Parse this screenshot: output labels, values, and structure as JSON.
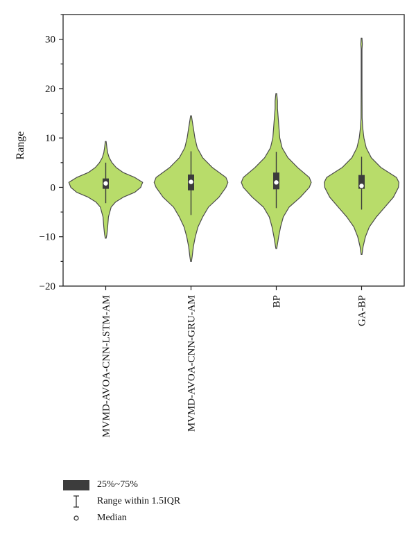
{
  "chart_data": {
    "type": "violin",
    "ylabel": "Range",
    "xlabel": "",
    "ylim": [
      -20,
      35
    ],
    "yticks": [
      -20,
      -10,
      0,
      10,
      20,
      30
    ],
    "grid": false,
    "violin_color": "#b8dc6a",
    "box_color": "#3c3c3c",
    "categories": [
      "MVMD-AVOA-CNN-LSTM-AM",
      "MVMD-AVOA-CNN-GRU-AM",
      "BP",
      "GA-BP"
    ],
    "series": [
      {
        "category": "MVMD-AVOA-CNN-LSTM-AM",
        "median": 0.8,
        "q1": -0.3,
        "q3": 1.8,
        "whisker_low": -3.2,
        "whisker_high": 5.0,
        "min": -10.3,
        "max": 9.3,
        "density": [
          [
            -10.3,
            0.01
          ],
          [
            -9.5,
            0.03
          ],
          [
            -8,
            0.05
          ],
          [
            -6,
            0.07
          ],
          [
            -4,
            0.14
          ],
          [
            -3,
            0.25
          ],
          [
            -2,
            0.45
          ],
          [
            -1,
            0.75
          ],
          [
            0,
            0.9
          ],
          [
            1,
            0.95
          ],
          [
            2,
            0.75
          ],
          [
            3,
            0.45
          ],
          [
            4,
            0.27
          ],
          [
            5,
            0.16
          ],
          [
            6,
            0.09
          ],
          [
            7,
            0.05
          ],
          [
            8,
            0.03
          ],
          [
            9.3,
            0.01
          ]
        ]
      },
      {
        "category": "MVMD-AVOA-CNN-GRU-AM",
        "median": 1.1,
        "q1": -0.6,
        "q3": 2.6,
        "whisker_low": -5.6,
        "whisker_high": 7.3,
        "min": -15.0,
        "max": 14.5,
        "density": [
          [
            -15,
            0.01
          ],
          [
            -14,
            0.03
          ],
          [
            -12,
            0.06
          ],
          [
            -10,
            0.11
          ],
          [
            -8,
            0.18
          ],
          [
            -6,
            0.3
          ],
          [
            -4,
            0.45
          ],
          [
            -2,
            0.72
          ],
          [
            0,
            0.9
          ],
          [
            1,
            0.95
          ],
          [
            2,
            0.9
          ],
          [
            4,
            0.55
          ],
          [
            6,
            0.3
          ],
          [
            8,
            0.16
          ],
          [
            10,
            0.1
          ],
          [
            12,
            0.06
          ],
          [
            13.5,
            0.03
          ],
          [
            14.5,
            0.01
          ]
        ]
      },
      {
        "category": "BP",
        "median": 1.0,
        "q1": -0.4,
        "q3": 3.0,
        "whisker_low": -4.2,
        "whisker_high": 7.2,
        "min": -12.4,
        "max": 19.0,
        "density": [
          [
            -12.4,
            0.01
          ],
          [
            -11.5,
            0.03
          ],
          [
            -10,
            0.06
          ],
          [
            -8,
            0.11
          ],
          [
            -6,
            0.18
          ],
          [
            -4,
            0.33
          ],
          [
            -2,
            0.62
          ],
          [
            0,
            0.85
          ],
          [
            1,
            0.9
          ],
          [
            2,
            0.85
          ],
          [
            4,
            0.55
          ],
          [
            6,
            0.3
          ],
          [
            8,
            0.15
          ],
          [
            10,
            0.09
          ],
          [
            12,
            0.07
          ],
          [
            14,
            0.05
          ],
          [
            16,
            0.03
          ],
          [
            17.5,
            0.03
          ],
          [
            19,
            0.01
          ]
        ]
      },
      {
        "category": "GA-BP",
        "median": 0.3,
        "q1": -0.3,
        "q3": 2.5,
        "whisker_low": -4.5,
        "whisker_high": 6.2,
        "min": -13.6,
        "max": 30.2,
        "density": [
          [
            -13.6,
            0.01
          ],
          [
            -12,
            0.04
          ],
          [
            -10,
            0.1
          ],
          [
            -8,
            0.2
          ],
          [
            -6,
            0.38
          ],
          [
            -4,
            0.6
          ],
          [
            -2,
            0.82
          ],
          [
            0,
            0.95
          ],
          [
            1,
            0.96
          ],
          [
            2,
            0.9
          ],
          [
            4,
            0.5
          ],
          [
            6,
            0.25
          ],
          [
            8,
            0.12
          ],
          [
            10,
            0.06
          ],
          [
            12,
            0.03
          ],
          [
            14,
            0.015
          ],
          [
            20,
            0.01
          ],
          [
            28,
            0.01
          ],
          [
            29,
            0.02
          ],
          [
            30.2,
            0.01
          ]
        ]
      }
    ]
  },
  "legend": {
    "items": [
      {
        "label": "25%~75%"
      },
      {
        "label": "Range within 1.5IQR"
      },
      {
        "label": "Median"
      }
    ]
  }
}
